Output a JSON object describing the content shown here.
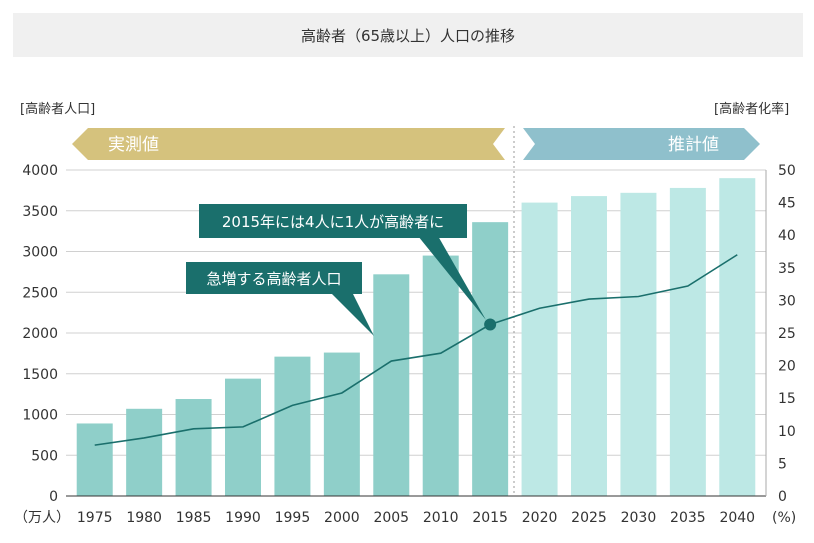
{
  "chart_data": {
    "type": "bar",
    "title": "高齢者（65歳以上）人口の推移",
    "y_left_label": "[高齢者人口]",
    "y_right_label": "[高齢者化率]",
    "x_unit_left": "（万人）",
    "x_unit_right": "(%)",
    "categories": [
      "1975",
      "1980",
      "1985",
      "1990",
      "1995",
      "2000",
      "2005",
      "2010",
      "2015",
      "2020",
      "2025",
      "2030",
      "2035",
      "2040"
    ],
    "y_left_ticks": [
      "0",
      "500",
      "1000",
      "1500",
      "2000",
      "2500",
      "3000",
      "3500",
      "4000"
    ],
    "y_right_ticks": [
      "0",
      "5",
      "10",
      "15",
      "20",
      "25",
      "30",
      "35",
      "40",
      "45",
      "50"
    ],
    "ylim_left": [
      0,
      4000
    ],
    "ylim_right": [
      0,
      50
    ],
    "series": [
      {
        "kind": "bar",
        "values": [
          890,
          1070,
          1190,
          1440,
          1710,
          1760,
          2720,
          2950,
          3360,
          3600,
          3680,
          3720,
          3780,
          3900
        ]
      },
      {
        "kind": "line",
        "axis": "right",
        "values": [
          7.8,
          8.9,
          10.3,
          10.6,
          13.9,
          15.8,
          20.7,
          21.9,
          26.3,
          28.8,
          30.2,
          30.6,
          32.2,
          37.0
        ]
      }
    ],
    "segments": {
      "measured_label": "実測値",
      "projected_label": "推計値"
    },
    "annotations": {
      "callout_2015": "2015年には4人に1人が高齢者に",
      "callout_rise": "急増する高齢者人口"
    },
    "colors": {
      "measured_bar": "#8fcfc9",
      "projected_bar": "#bde8e5",
      "line": "#1a6f6c",
      "callout_bg": "#1a6f6c",
      "measured_banner": "#d5c27d",
      "projected_banner": "#8fc0cc",
      "grid": "#d0d0d0"
    },
    "grid": true
  }
}
